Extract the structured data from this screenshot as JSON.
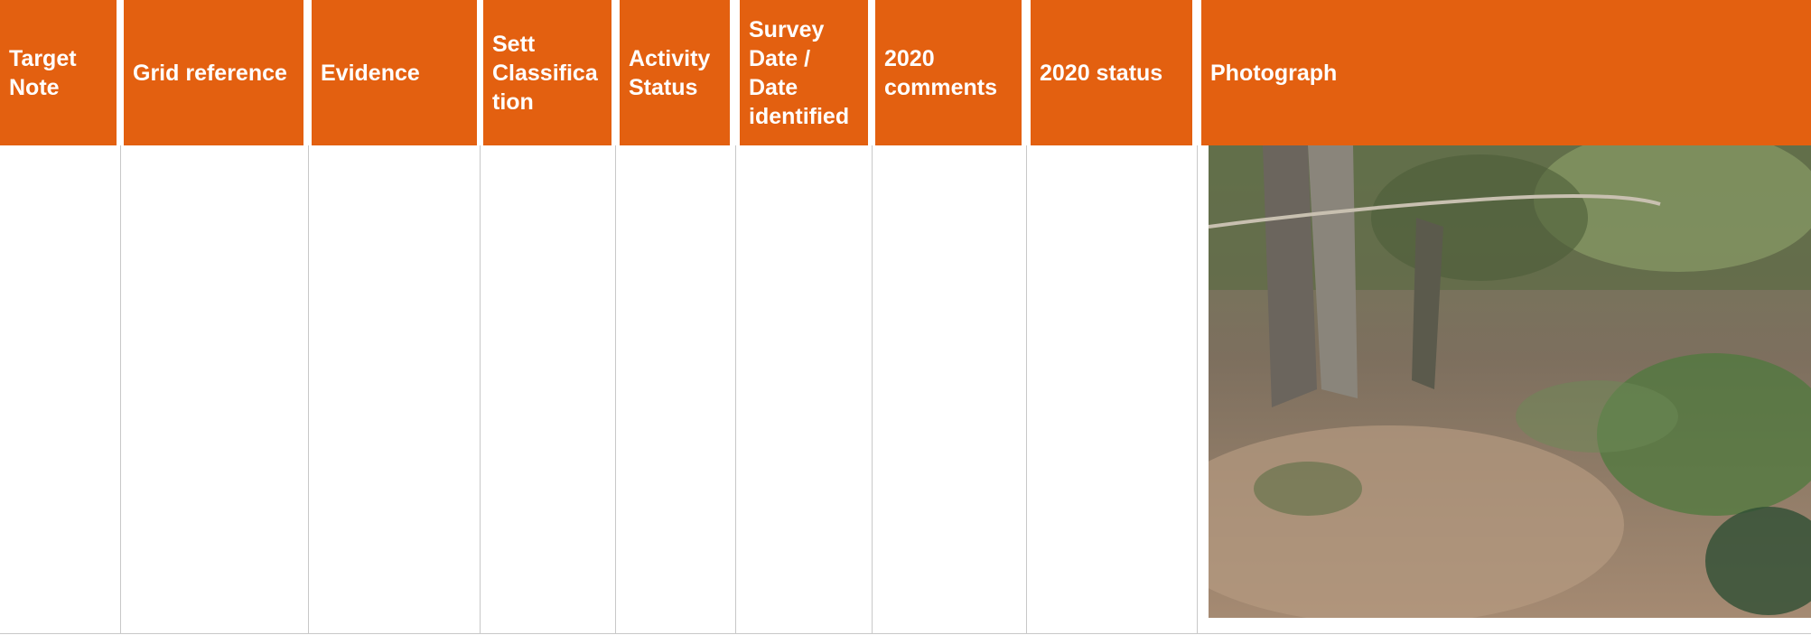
{
  "table": {
    "headers": [
      "Target Note",
      "Grid reference",
      "Evidence",
      "Sett Classification",
      "Activity Status",
      "Survey Date / Date identified",
      "2020 comments",
      "2020 status",
      "Photograph"
    ]
  }
}
